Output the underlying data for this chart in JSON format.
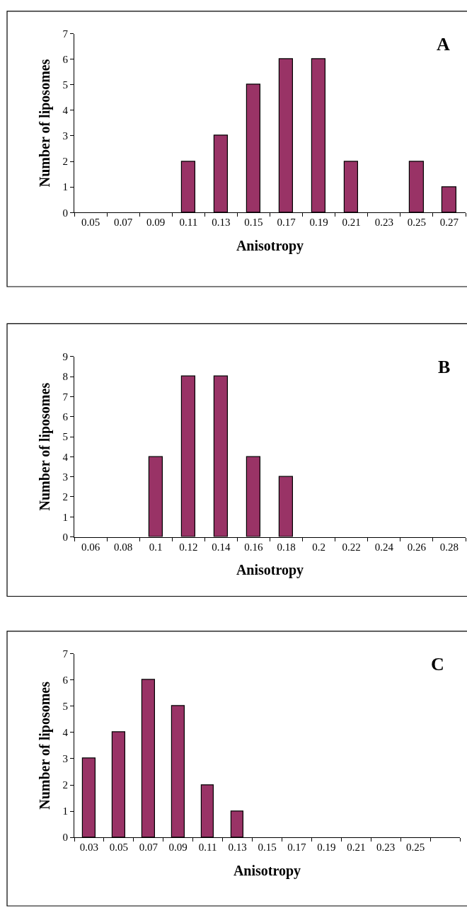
{
  "chart_data": [
    {
      "type": "bar",
      "categories": [
        "0.05",
        "0.07",
        "0.09",
        "0.11",
        "0.13",
        "0.15",
        "0.17",
        "0.19",
        "0.21",
        "0.23",
        "0.25",
        "0.27"
      ],
      "values": [
        0,
        0,
        0,
        2,
        3,
        5,
        6,
        6,
        2,
        0,
        2,
        1
      ],
      "color": "#993366",
      "xlabel": "Anisotropy",
      "ylabel": "Number of liposomes",
      "ylim": [
        0,
        7
      ],
      "yticks": [
        0,
        1,
        2,
        3,
        4,
        5,
        6,
        7
      ],
      "grid": false,
      "annotations": [
        "A"
      ]
    },
    {
      "type": "bar",
      "categories": [
        "0.06",
        "0.08",
        "0.1",
        "0.12",
        "0.14",
        "0.16",
        "0.18",
        "0.2",
        "0.22",
        "0.24",
        "0.26",
        "0.28"
      ],
      "values": [
        0,
        0,
        4,
        8,
        8,
        4,
        3,
        0,
        0,
        0,
        0,
        0
      ],
      "color": "#993366",
      "xlabel": "Anisotropy",
      "ylabel": "Number of liposomes",
      "ylim": [
        0,
        9
      ],
      "yticks": [
        0,
        1,
        2,
        3,
        4,
        5,
        6,
        7,
        8,
        9
      ],
      "grid": false,
      "annotations": [
        "B"
      ]
    },
    {
      "type": "bar",
      "categories": [
        "0.03",
        "0.05",
        "0.07",
        "0.09",
        "0.11",
        "0.13",
        "0.15",
        "0.17",
        "0.19",
        "0.21",
        "0.23",
        "0.25",
        null
      ],
      "values": [
        3,
        4,
        6,
        5,
        2,
        1,
        0,
        0,
        0,
        0,
        0,
        0,
        0
      ],
      "color": "#993366",
      "xlabel": "Anisotropy",
      "ylabel": "Number of liposomes",
      "ylim": [
        0,
        7
      ],
      "yticks": [
        0,
        1,
        2,
        3,
        4,
        5,
        6,
        7
      ],
      "grid": false,
      "annotations": [
        "C"
      ]
    }
  ]
}
